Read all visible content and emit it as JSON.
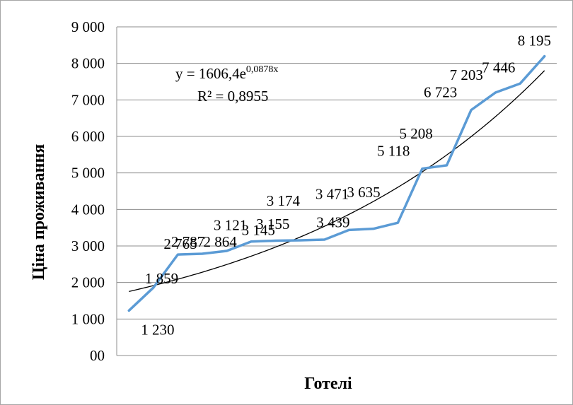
{
  "chart_data": {
    "type": "line",
    "xlabel": "Готелі",
    "ylabel": "Ціна проживання",
    "ylim": [
      0,
      9000
    ],
    "y_ticks": [
      0,
      1000,
      2000,
      3000,
      4000,
      5000,
      6000,
      7000,
      8000,
      9000
    ],
    "y_tick_labels": [
      "00",
      "1 000",
      "2 000",
      "3 000",
      "4 000",
      "5 000",
      "6 000",
      "7 000",
      "8 000",
      "9 000"
    ],
    "grid": true,
    "legend": "none",
    "series": [
      {
        "values": [
          1230,
          1859,
          2765,
          2787,
          2864,
          3121,
          3145,
          3155,
          3174,
          3439,
          3471,
          3635,
          5118,
          5208,
          6723,
          7203,
          7446,
          8195
        ],
        "labels": [
          "1 230",
          "1 859",
          "2 765",
          "2 787",
          "2 864",
          "3 121",
          "3 145",
          "3 155",
          "3 174",
          "3 439",
          "3 471",
          "3 635",
          "5 118",
          "5 208",
          "6 723",
          "7 203",
          "7 446",
          "8 195"
        ],
        "color": "#5b9bd5"
      }
    ],
    "trendline": {
      "type": "exponential",
      "a": 1606.4,
      "b": 0.0878,
      "color": "#000000",
      "equation_main": "y = 1606,4e",
      "equation_exp": "0,0878x",
      "r_squared": "R² = 0,8955"
    }
  }
}
